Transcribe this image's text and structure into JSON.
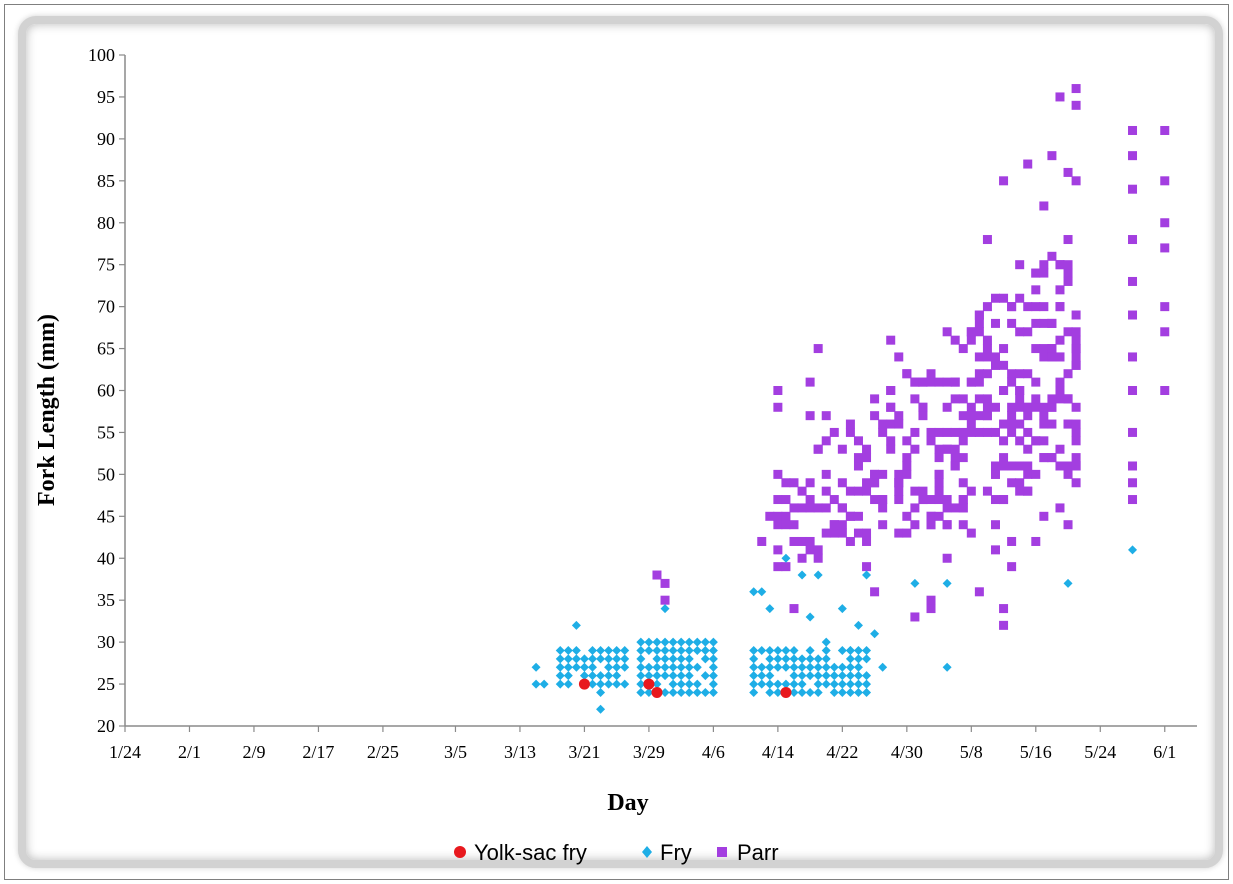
{
  "chart_data": {
    "type": "scatter",
    "title": "",
    "xlabel": "Day",
    "ylabel": "Fork Length (mm)",
    "x_ticks": [
      "1/24",
      "2/1",
      "2/9",
      "2/17",
      "2/25",
      "3/5",
      "3/13",
      "3/21",
      "3/29",
      "4/6",
      "4/14",
      "4/22",
      "4/30",
      "5/8",
      "5/16",
      "5/24",
      "6/1"
    ],
    "x_range": [
      "1/24",
      "6/5"
    ],
    "ylim": [
      20,
      100
    ],
    "y_ticks": [
      20,
      25,
      30,
      35,
      40,
      45,
      50,
      55,
      60,
      65,
      70,
      75,
      80,
      85,
      90,
      95,
      100
    ],
    "grid": false,
    "legend_position": "bottom",
    "colors": {
      "yolk_sac_fry": "#e8191e",
      "fry": "#1eaee6",
      "parr": "#a33ee0"
    },
    "series": [
      {
        "name": "Yolk-sac fry",
        "marker": "circle",
        "points": [
          [
            "3/21",
            25
          ],
          [
            "3/29",
            25
          ],
          [
            "3/30",
            24
          ],
          [
            "4/15",
            24
          ]
        ]
      },
      {
        "name": "Fry",
        "marker": "diamond",
        "points": [
          [
            "3/15",
            25
          ],
          [
            "3/15",
            27
          ],
          [
            "3/16",
            25
          ],
          [
            "3/20",
            32
          ],
          [
            "3/23",
            22
          ],
          [
            "3/23",
            24
          ],
          [
            "3/31",
            34
          ],
          [
            "4/11",
            36
          ],
          [
            "4/12",
            36
          ],
          [
            "4/13",
            34
          ],
          [
            "4/15",
            40
          ],
          [
            "4/17",
            38
          ],
          [
            "4/18",
            33
          ],
          [
            "4/19",
            38
          ],
          [
            "4/20",
            30
          ],
          [
            "4/22",
            34
          ],
          [
            "4/23",
            29
          ],
          [
            "4/24",
            32
          ],
          [
            "4/25",
            38
          ],
          [
            "4/26",
            31
          ],
          [
            "4/27",
            27
          ],
          [
            "5/1",
            37
          ],
          [
            "5/5",
            37
          ],
          [
            "5/5",
            27
          ],
          [
            "5/20",
            37
          ],
          [
            "5/28",
            41
          ]
        ],
        "clusters": [
          {
            "days": [
              "3/18",
              "3/26"
            ],
            "y_range": [
              25,
              29
            ]
          },
          {
            "days": [
              "3/28",
              "4/6"
            ],
            "y_range": [
              24,
              30
            ]
          },
          {
            "days": [
              "4/11",
              "4/25"
            ],
            "y_range": [
              24,
              29
            ]
          }
        ]
      },
      {
        "name": "Parr",
        "marker": "square",
        "points": [
          [
            "3/30",
            38
          ],
          [
            "3/31",
            37
          ],
          [
            "3/31",
            35
          ],
          [
            "4/12",
            42
          ],
          [
            "4/13",
            45
          ],
          [
            "4/14",
            60
          ],
          [
            "4/14",
            58
          ],
          [
            "4/14",
            50
          ],
          [
            "4/14",
            47
          ],
          [
            "4/15",
            47
          ],
          [
            "4/16",
            34
          ],
          [
            "4/18",
            61
          ],
          [
            "4/18",
            57
          ],
          [
            "4/19",
            65
          ],
          [
            "4/20",
            57
          ],
          [
            "4/22",
            44
          ],
          [
            "4/25",
            39
          ],
          [
            "4/26",
            36
          ],
          [
            "4/28",
            66
          ],
          [
            "4/29",
            64
          ],
          [
            "5/1",
            33
          ],
          [
            "5/3",
            34
          ],
          [
            "5/3",
            35
          ],
          [
            "5/5",
            40
          ],
          [
            "5/5",
            67
          ],
          [
            "5/7",
            44
          ],
          [
            "5/9",
            36
          ],
          [
            "5/10",
            78
          ],
          [
            "5/11",
            41
          ],
          [
            "5/11",
            44
          ],
          [
            "5/12",
            85
          ],
          [
            "5/13",
            39
          ],
          [
            "5/13",
            42
          ],
          [
            "5/14",
            75
          ],
          [
            "5/15",
            87
          ],
          [
            "5/17",
            82
          ],
          [
            "5/18",
            88
          ],
          [
            "5/19",
            46
          ],
          [
            "5/20",
            86
          ],
          [
            "5/20",
            44
          ],
          [
            "5/19",
            95
          ],
          [
            "5/21",
            96
          ],
          [
            "5/21",
            94
          ],
          [
            "5/21",
            85
          ],
          [
            "5/21",
            49
          ],
          [
            "5/21",
            51
          ],
          [
            "5/17",
            45
          ],
          [
            "5/16",
            42
          ],
          [
            "5/12",
            32
          ],
          [
            "5/12",
            34
          ],
          [
            "5/8",
            43
          ],
          [
            "5/7",
            47
          ],
          [
            "5/6",
            51
          ],
          [
            "5/4",
            53
          ],
          [
            "5/28",
            91
          ],
          [
            "5/28",
            88
          ],
          [
            "5/28",
            84
          ],
          [
            "5/28",
            78
          ],
          [
            "5/28",
            73
          ],
          [
            "5/28",
            69
          ],
          [
            "5/28",
            64
          ],
          [
            "5/28",
            60
          ],
          [
            "5/28",
            55
          ],
          [
            "5/28",
            51
          ],
          [
            "5/28",
            49
          ],
          [
            "5/28",
            47
          ],
          [
            "6/1",
            91
          ],
          [
            "6/1",
            85
          ],
          [
            "6/1",
            80
          ],
          [
            "6/1",
            77
          ],
          [
            "6/1",
            70
          ],
          [
            "6/1",
            67
          ],
          [
            "6/1",
            60
          ]
        ],
        "trend": "fork length increases from ~35-50 mm in mid-April to ~55-85 mm by mid-May; dense band 4/14-5/21"
      }
    ]
  },
  "legend": {
    "items": [
      {
        "label": "Yolk-sac fry",
        "color": "#e8191e",
        "marker": "circle"
      },
      {
        "label": "Fry",
        "color": "#1eaee6",
        "marker": "diamond"
      },
      {
        "label": "Parr",
        "color": "#a33ee0",
        "marker": "square"
      }
    ]
  }
}
